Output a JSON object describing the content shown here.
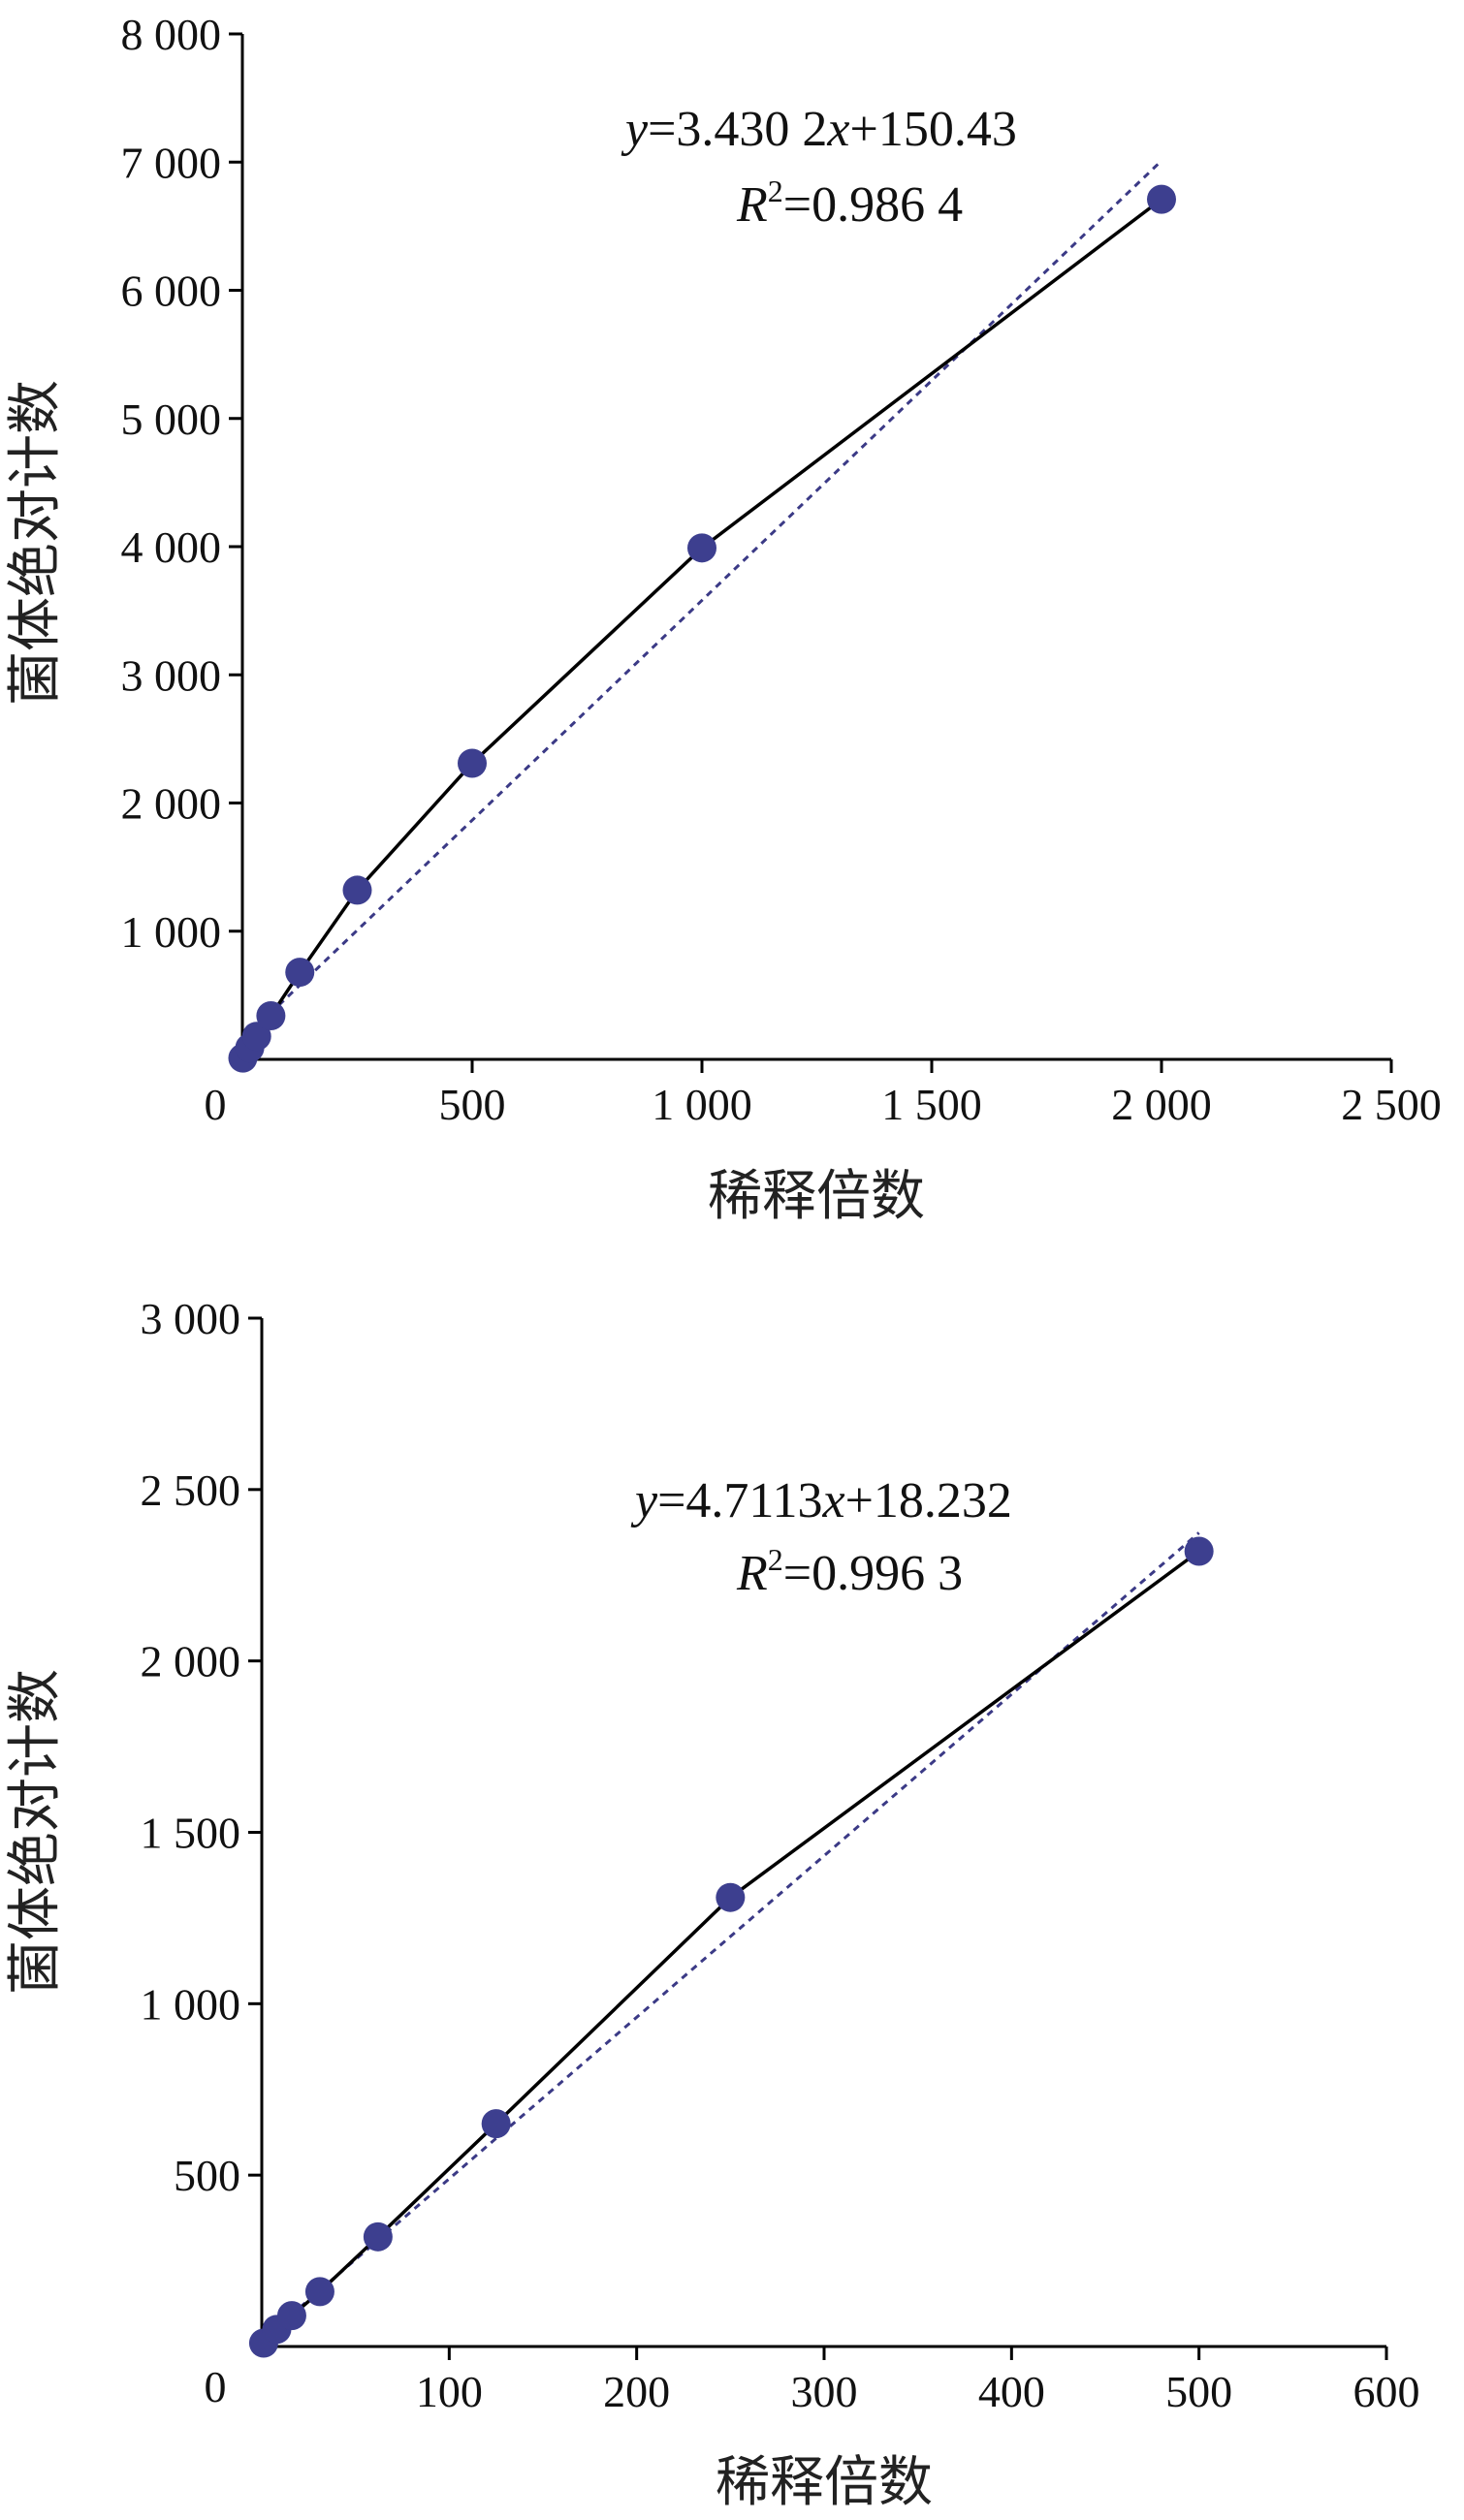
{
  "chart_data": [
    {
      "type": "scatter",
      "xlabel": "稀释倍数",
      "ylabel": "菌体绝对计数",
      "xlim": [
        0,
        2500
      ],
      "ylim": [
        0,
        8000
      ],
      "x_ticks": [
        0,
        500,
        1000,
        1500,
        2000,
        2500
      ],
      "x_tick_labels": [
        "0",
        "500",
        "1 000",
        "1 500",
        "2 000",
        "2 500"
      ],
      "y_ticks": [
        1000,
        2000,
        3000,
        4000,
        5000,
        6000,
        7000,
        8000
      ],
      "y_tick_labels": [
        "1 000",
        "2 000",
        "3 000",
        "4 000",
        "5 000",
        "6 000",
        "7 000",
        "8 000"
      ],
      "series": [
        {
          "x": [
            1,
            16,
            31,
            62,
            125,
            250,
            500,
            1000,
            2000
          ],
          "y": [
            10,
            90,
            180,
            340,
            680,
            1320,
            2310,
            3990,
            6710
          ]
        }
      ],
      "trendline": {
        "slope": 3.4302,
        "intercept": 150.43,
        "x_range": [
          0,
          2000
        ]
      },
      "annotation": {
        "eq_y": "y",
        "eq_mid": "=3.430 2",
        "eq_x": "x",
        "eq_rest": "+150.43",
        "r2_r": "R",
        "r2_sup": "2",
        "r2_rest": "=0.986 4"
      },
      "grid": false
    },
    {
      "type": "scatter",
      "xlabel": "稀释倍数",
      "ylabel": "菌体绝对计数",
      "xlim": [
        0,
        600
      ],
      "ylim": [
        0,
        3000
      ],
      "x_ticks": [
        0,
        100,
        200,
        300,
        400,
        500,
        600
      ],
      "x_tick_labels": [
        "0",
        "100",
        "200",
        "300",
        "400",
        "500",
        "600"
      ],
      "y_ticks": [
        500,
        1000,
        1500,
        2000,
        2500,
        3000
      ],
      "y_tick_labels": [
        "500",
        "1 000",
        "1 500",
        "2 000",
        "2 500",
        "3 000"
      ],
      "series": [
        {
          "x": [
            1,
            8,
            16,
            31,
            62,
            125,
            250,
            500
          ],
          "y": [
            10,
            50,
            90,
            160,
            320,
            650,
            1310,
            2320
          ]
        }
      ],
      "trendline": {
        "slope": 4.7113,
        "intercept": 18.232,
        "x_range": [
          0,
          500
        ]
      },
      "annotation": {
        "eq_y": "y",
        "eq_mid": "=4.7113",
        "eq_x": "x",
        "eq_rest": "+18.232",
        "r2_r": "R",
        "r2_sup": "2",
        "r2_rest": "=0.996 3"
      },
      "grid": false
    }
  ]
}
